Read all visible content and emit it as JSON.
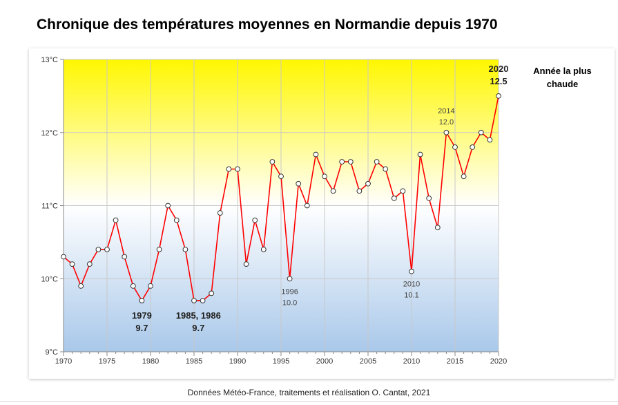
{
  "chart_data": {
    "type": "line",
    "title": "Chronique des températures moyennes en Normandie depuis 1970",
    "source": "Données Météo-France, traitements et réalisation O. Cantat, 2021",
    "note": "Année la plus chaude",
    "x": [
      1970,
      1971,
      1972,
      1973,
      1974,
      1975,
      1976,
      1977,
      1978,
      1979,
      1980,
      1981,
      1982,
      1983,
      1984,
      1985,
      1986,
      1987,
      1988,
      1989,
      1990,
      1991,
      1992,
      1993,
      1994,
      1995,
      1996,
      1997,
      1998,
      1999,
      2000,
      2001,
      2002,
      2003,
      2004,
      2005,
      2006,
      2007,
      2008,
      2009,
      2010,
      2011,
      2012,
      2013,
      2014,
      2015,
      2016,
      2017,
      2018,
      2019,
      2020
    ],
    "series": [
      {
        "values": [
          10.3,
          10.2,
          9.9,
          10.2,
          10.4,
          10.4,
          10.8,
          10.3,
          9.9,
          9.7,
          9.9,
          10.4,
          11.0,
          10.8,
          10.4,
          9.7,
          9.7,
          9.8,
          10.9,
          11.5,
          11.5,
          10.2,
          10.8,
          10.4,
          11.6,
          11.4,
          10.0,
          11.3,
          11.0,
          11.7,
          11.4,
          11.2,
          11.6,
          11.6,
          11.2,
          11.3,
          11.6,
          11.5,
          11.1,
          11.2,
          10.1,
          11.7,
          11.1,
          10.7,
          12.0,
          11.8,
          11.4,
          11.8,
          12.0,
          11.9,
          12.5
        ],
        "color": "#ff0000"
      }
    ],
    "xlim": [
      1970,
      2020
    ],
    "ylim": [
      9,
      13
    ],
    "x_ticks": [
      "1970",
      "1975",
      "1980",
      "1985",
      "1990",
      "1995",
      "2000",
      "2005",
      "2010",
      "2015",
      "2020"
    ],
    "y_ticks": [
      "9°C",
      "10°C",
      "11°C",
      "12°C",
      "13°C"
    ],
    "grid": true,
    "background_gradient": [
      "#fff700",
      "#ffffff",
      "#a9c8ea"
    ],
    "annotations": [
      {
        "x": 1979,
        "line1": "1979",
        "line2": "9.7",
        "bold": true,
        "pos": "below"
      },
      {
        "x": 1985.5,
        "line1": "1985, 1986",
        "line2": "9.7",
        "bold": true,
        "pos": "below"
      },
      {
        "x": 1996,
        "line1": "1996",
        "line2": "10.0",
        "bold": false,
        "pos": "below"
      },
      {
        "x": 2010,
        "line1": "2010",
        "line2": "10.1",
        "bold": false,
        "pos": "below"
      },
      {
        "x": 2014,
        "line1": "2014",
        "line2": "12.0",
        "bold": false,
        "pos": "above"
      },
      {
        "x": 2020,
        "line1": "2020",
        "line2": "12.5",
        "bold": true,
        "pos": "above"
      }
    ]
  }
}
